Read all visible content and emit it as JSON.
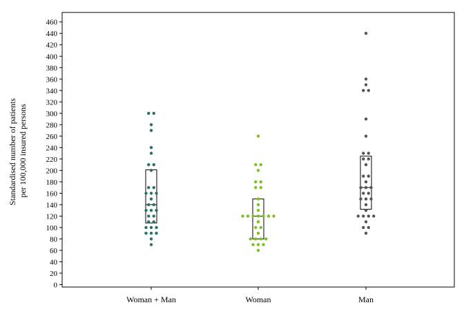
{
  "chart_data": {
    "type": "scatter",
    "subtype": "beeswarm-with-boxplot",
    "title": "",
    "xlabel": "",
    "ylabel": [
      "Standardised number of patients",
      "per 100,000 insured persons"
    ],
    "ylim": [
      0,
      470
    ],
    "yticks": [
      0,
      20,
      40,
      60,
      80,
      100,
      120,
      140,
      160,
      180,
      200,
      220,
      240,
      260,
      280,
      300,
      320,
      340,
      360,
      380,
      400,
      420,
      440,
      460
    ],
    "grid": false,
    "legend": "none",
    "categories": [
      "Woman + Man",
      "Woman",
      "Man"
    ],
    "series": [
      {
        "category": "Woman + Man",
        "color": "#2a7068",
        "values": [
          300,
          300,
          280,
          270,
          240,
          230,
          210,
          210,
          200,
          170,
          170,
          160,
          160,
          160,
          150,
          140,
          140,
          130,
          130,
          130,
          120,
          120,
          110,
          110,
          100,
          100,
          100,
          90,
          90,
          90,
          80,
          70
        ],
        "box": {
          "q1": 108,
          "median": 140,
          "q3": 201
        }
      },
      {
        "category": "Woman",
        "color": "#7cc01f",
        "values": [
          260,
          210,
          210,
          200,
          180,
          180,
          170,
          170,
          150,
          140,
          130,
          120,
          120,
          120,
          120,
          120,
          120,
          120,
          110,
          100,
          100,
          90,
          80,
          80,
          80,
          80,
          70,
          70,
          70,
          60
        ],
        "box": {
          "q1": 80,
          "median": 120,
          "q3": 150
        }
      },
      {
        "category": "Man",
        "color": "#555555",
        "values": [
          440,
          360,
          350,
          340,
          340,
          290,
          260,
          230,
          230,
          220,
          220,
          210,
          190,
          190,
          180,
          170,
          170,
          170,
          160,
          160,
          150,
          150,
          150,
          140,
          130,
          120,
          120,
          120,
          120,
          110,
          100,
          100,
          90
        ],
        "box": {
          "q1": 132,
          "median": 170,
          "q3": 225
        }
      }
    ]
  }
}
